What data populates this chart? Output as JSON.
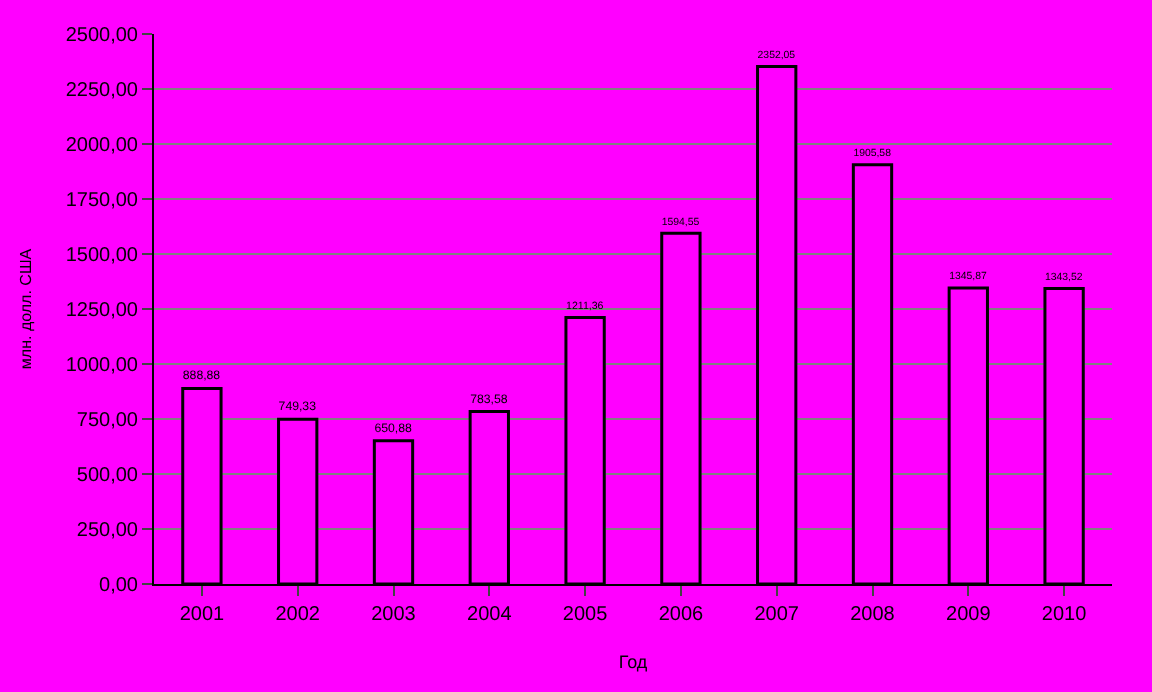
{
  "chart_data": {
    "type": "bar",
    "xlabel": "Год",
    "ylabel": "млн. долл. США",
    "categories": [
      "2001",
      "2002",
      "2003",
      "2004",
      "2005",
      "2006",
      "2007",
      "2008",
      "2009",
      "2010"
    ],
    "values": [
      888.88,
      749.33,
      650.88,
      783.58,
      1211.36,
      1594.55,
      2352.05,
      1905.58,
      1345.87,
      1343.52
    ],
    "value_labels": [
      "888,88",
      "749,33",
      "650,88",
      "783,58",
      "1211,36",
      "1594,55",
      "2352,05",
      "1905,58",
      "1345,87",
      "1343,52"
    ],
    "color": "#ff00ff",
    "ylim": [
      0,
      2500
    ],
    "yticks": [
      {
        "value": 0,
        "label": "0,00"
      },
      {
        "value": 250,
        "label": "250,00"
      },
      {
        "value": 500,
        "label": "500,00"
      },
      {
        "value": 750,
        "label": "750,00"
      },
      {
        "value": 1000,
        "label": "1000,00"
      },
      {
        "value": 1250,
        "label": "1250,00"
      },
      {
        "value": 1500,
        "label": "1500,00"
      },
      {
        "value": 1750,
        "label": "1750,00"
      },
      {
        "value": 2000,
        "label": "2000,00"
      },
      {
        "value": 2250,
        "label": "2250,00"
      },
      {
        "value": 2500,
        "label": "2500,00"
      }
    ],
    "grid": "y",
    "legend": false
  }
}
